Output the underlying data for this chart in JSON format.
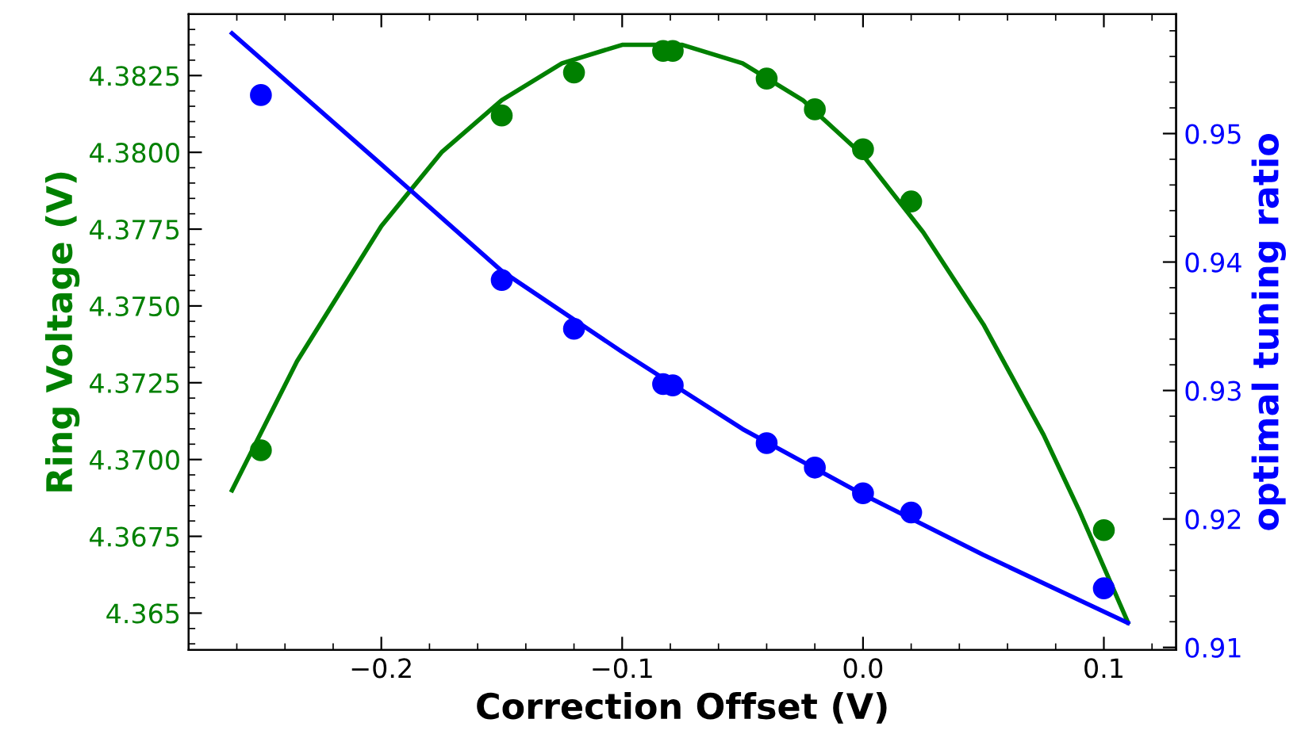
{
  "chart_data": {
    "type": "scatter",
    "xlabel": "Correction Offset (V)",
    "ylabel": "Ring Voltage (V)",
    "y2label": "optimal tuning ratio",
    "xlim": [
      -0.28,
      0.13
    ],
    "xticks": [
      {
        "value": -0.2,
        "label": "−0.2"
      },
      {
        "value": -0.1,
        "label": "−0.1"
      },
      {
        "value": 0.0,
        "label": "0.0"
      },
      {
        "value": 0.1,
        "label": "0.1"
      }
    ],
    "ylim": [
      4.3638,
      4.3845
    ],
    "yticks": [
      4.365,
      {
        "value": 4.3675,
        "label": "4.3675"
      },
      {
        "value": 4.37,
        "label": "4.3700"
      },
      {
        "value": 4.3725,
        "label": "4.3725"
      },
      {
        "value": 4.375,
        "label": "4.3750"
      },
      {
        "value": 4.3775,
        "label": "4.3775"
      },
      {
        "value": 4.38,
        "label": "4.3800"
      },
      {
        "value": 4.3825,
        "label": "4.3825"
      }
    ],
    "y2lim": [
      0.9098,
      0.9593
    ],
    "y2ticks": [
      0.91,
      0.92,
      0.93,
      0.94,
      0.95
    ],
    "grid": false,
    "legend": false,
    "series": [
      {
        "color": "#008000",
        "marker": "circle",
        "x": [
          -0.25,
          -0.15,
          -0.12,
          -0.083,
          -0.079,
          -0.04,
          -0.02,
          0.0,
          0.02,
          0.1
        ],
        "values": [
          4.3703,
          4.3812,
          4.3826,
          4.3833,
          4.3833,
          4.3824,
          4.3814,
          4.3801,
          4.3784,
          4.3677
        ]
      },
      {
        "type": "line",
        "color": "#008000",
        "marker": "none",
        "line_style": "solid",
        "x": [
          -0.262,
          -0.235,
          -0.2,
          -0.175,
          -0.15,
          -0.125,
          -0.1,
          -0.075,
          -0.05,
          -0.025,
          0.0,
          0.025,
          0.05,
          0.075,
          0.09,
          0.11
        ],
        "values": [
          4.369,
          4.3732,
          4.3776,
          4.38,
          4.3817,
          4.3829,
          4.3835,
          4.3835,
          4.3829,
          4.3817,
          4.3799,
          4.3774,
          4.3744,
          4.3708,
          4.3683,
          4.3647
        ]
      },
      {
        "axis": "y2",
        "color": "#0000ff",
        "marker": "circle",
        "x": [
          -0.25,
          -0.15,
          -0.12,
          -0.083,
          -0.079,
          -0.04,
          -0.02,
          0.0,
          0.02,
          0.1
        ],
        "values": [
          0.953,
          0.9386,
          0.9348,
          0.9305,
          0.9304,
          0.9259,
          0.924,
          0.922,
          0.9205,
          0.9146
        ]
      },
      {
        "type": "line",
        "axis": "y2",
        "color": "#0000ff",
        "marker": "none",
        "line_style": "solid",
        "x": [
          -0.262,
          -0.2,
          -0.15,
          -0.1,
          -0.05,
          0.0,
          0.05,
          0.11
        ],
        "values": [
          0.9578,
          0.9476,
          0.9393,
          0.933,
          0.927,
          0.9219,
          0.9172,
          0.9119
        ]
      }
    ]
  }
}
